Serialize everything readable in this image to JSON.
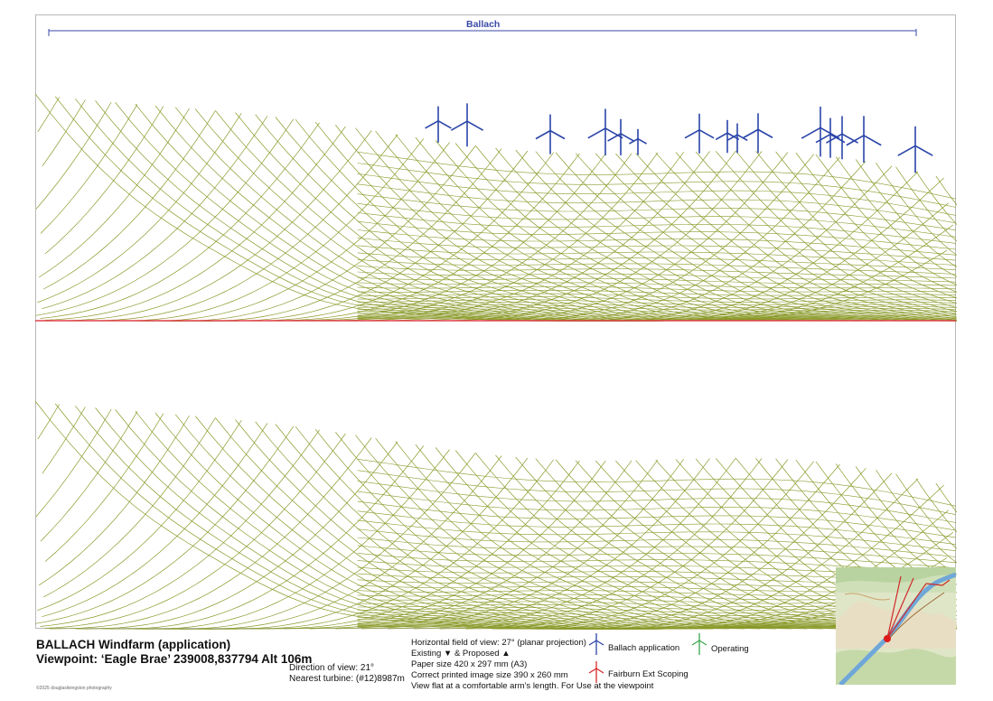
{
  "header": {
    "windfarm_label": "Ballach"
  },
  "footer": {
    "title": "BALLACH Windfarm (application)",
    "viewpoint": "Viewpoint: ‘Eagle Brae’ 239008,837794 Alt 106m",
    "direction": "Direction of view: 21°",
    "nearest": "Nearest turbine: (#12)8987m",
    "copyright": "©2025 douglaslivingston photography",
    "info": [
      "Horizontal field of view: 27° (planar projection)",
      "Existing ▼ & Proposed ▲",
      "Paper size 420 x 297 mm (A3)",
      "Correct printed image size 390 x 260 mm",
      "View flat at a comfortable arm’s length. For Use at the viewpoint"
    ],
    "legend": {
      "ballach": "Ballach application",
      "operating": "Operating",
      "fairburn": "Fairburn Ext Scoping"
    }
  },
  "colors": {
    "wireframe": "#8a9a2a",
    "turbine": "#2a44a8",
    "horizon": "#e0404a",
    "operating": "#3aa84a",
    "fairburn": "#d8282a"
  },
  "icons": {
    "turbines": "wind-turbine-icon",
    "map": "location-map-inset"
  }
}
